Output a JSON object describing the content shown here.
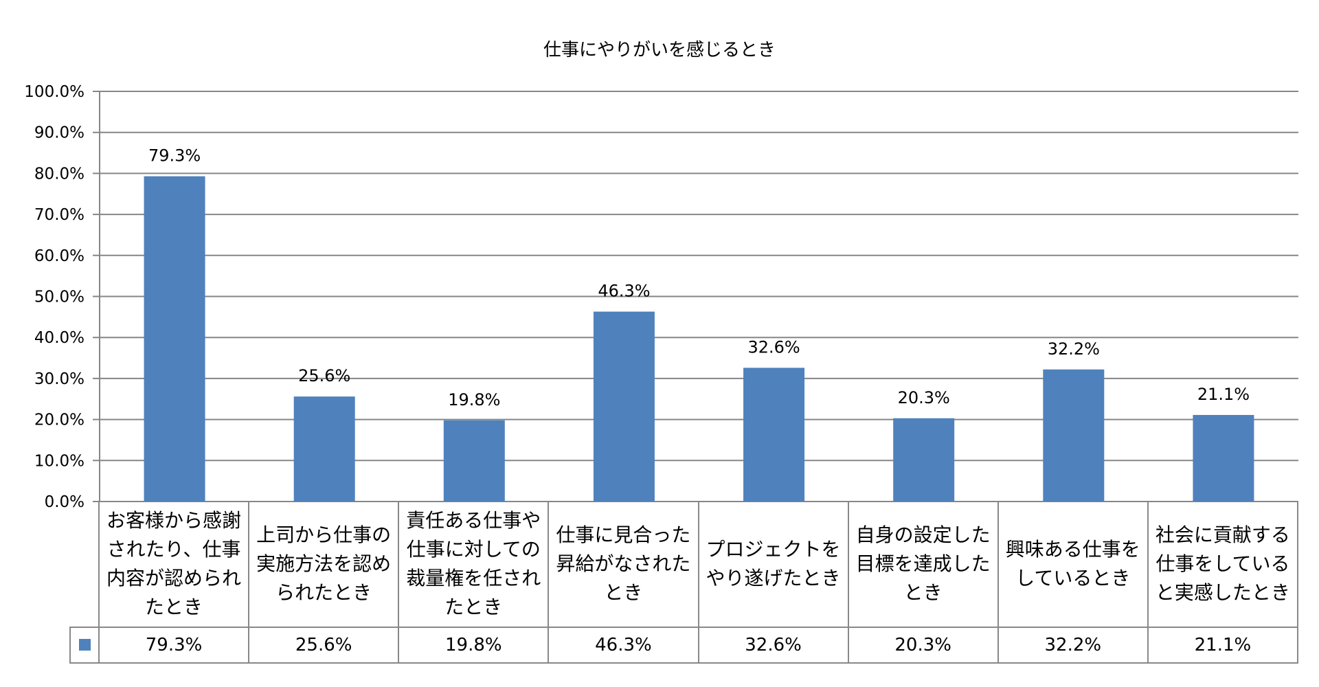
{
  "chart_data": {
    "type": "bar",
    "title": "仕事にやりがいを感じるとき",
    "categories": [
      "お客様から感謝されたり、仕事内容が認められたとき",
      "上司から仕事の実施方法を認められたとき",
      "責任ある仕事や仕事に対しての裁量権を任されたとき",
      "仕事に見合った昇給がなされたとき",
      "プロジェクトをやり遂げたとき",
      "自身の設定した目標を達成したとき",
      "興味ある仕事をしているとき",
      "社会に貢献する仕事をしていると実感したとき"
    ],
    "values": [
      79.3,
      25.6,
      19.8,
      46.3,
      32.6,
      20.3,
      32.2,
      21.1
    ],
    "value_labels": [
      "79.3%",
      "25.6%",
      "19.8%",
      "46.3%",
      "32.6%",
      "20.3%",
      "32.2%",
      "21.1%"
    ],
    "ylim": [
      0,
      100
    ],
    "yticks": [
      "0.0%",
      "10.0%",
      "20.0%",
      "30.0%",
      "40.0%",
      "50.0%",
      "60.0%",
      "70.0%",
      "80.0%",
      "90.0%",
      "100.0%"
    ],
    "grid": true,
    "data_table": true,
    "legend": "data-table",
    "bar_color": "#4f81bd",
    "grid_color": "#868686"
  }
}
